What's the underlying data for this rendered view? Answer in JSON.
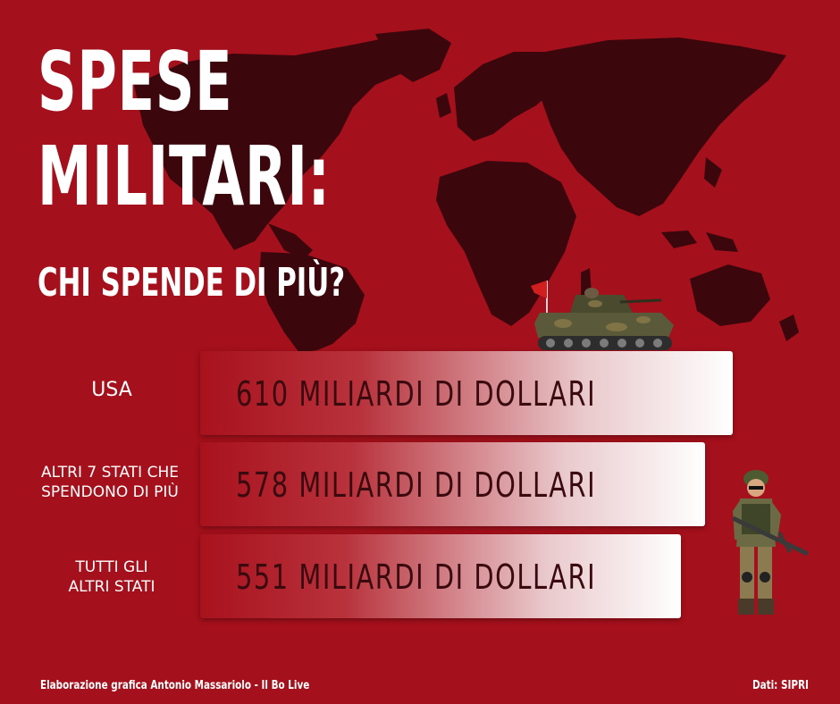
{
  "title": {
    "line1": "SPESE",
    "line2": "MILITARI:",
    "subtitle": "CHI SPENDE DI PIÙ?"
  },
  "chart_data": {
    "type": "bar",
    "orientation": "horizontal",
    "categories": [
      "USA",
      "ALTRI 7 STATI CHE\nSPENDONO DI PIÙ",
      "TUTTI GLI\nALTRI STATI"
    ],
    "values": [
      610,
      578,
      551
    ],
    "value_labels": [
      "610 MILIARDI DI DOLLARI",
      "578 MILIARDI DI DOLLARI",
      "551 MILIARDI DI DOLLARI"
    ],
    "title": "SPESE MILITARI:",
    "subtitle": "CHI SPENDE DI PIÙ?",
    "xlabel": "",
    "ylabel": "",
    "grid": false,
    "legend": "none"
  },
  "footer": {
    "credit": "Elaborazione grafica Antonio Massariolo - Il Bo Live",
    "source": "Dati: SIPRI"
  },
  "colors": {
    "background": "#a4101b",
    "map": "#3b070c",
    "bar_start": "#a8121d",
    "bar_end": "#ffffff",
    "bar_text": "#3a0a0e",
    "text": "#ffffff"
  },
  "icons": [
    "world-map",
    "tank-illustration",
    "soldier-illustration"
  ]
}
